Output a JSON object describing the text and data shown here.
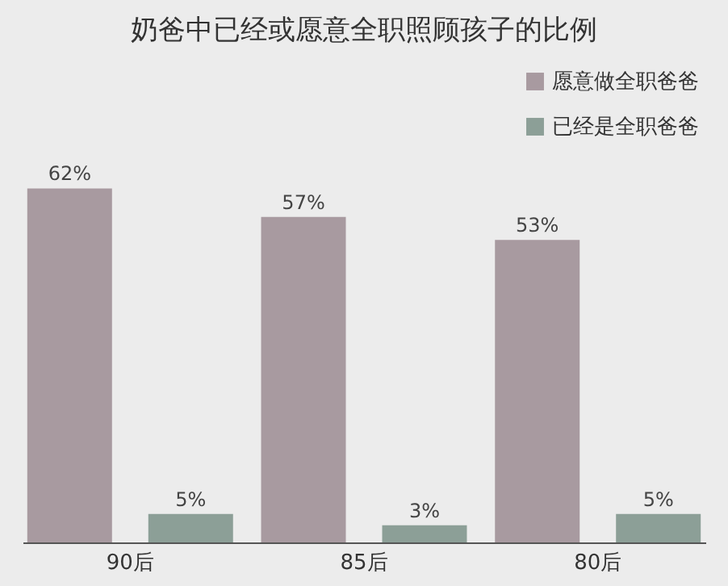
{
  "chart_data": {
    "type": "bar",
    "title": "奶爸中已经或愿意全职照顾孩子的比例",
    "categories": [
      "90后",
      "85后",
      "80后"
    ],
    "series": [
      {
        "name": "愿意做全职爸爸",
        "color": "#a89aa0",
        "values": [
          62,
          57,
          53
        ],
        "value_labels": [
          "62%",
          "57%",
          "53%"
        ]
      },
      {
        "name": "已经是全职爸爸",
        "color": "#8c9f97",
        "values": [
          5,
          3,
          5
        ],
        "value_labels": [
          "5%",
          "3%",
          "5%"
        ]
      }
    ],
    "legend": "top right"
  }
}
